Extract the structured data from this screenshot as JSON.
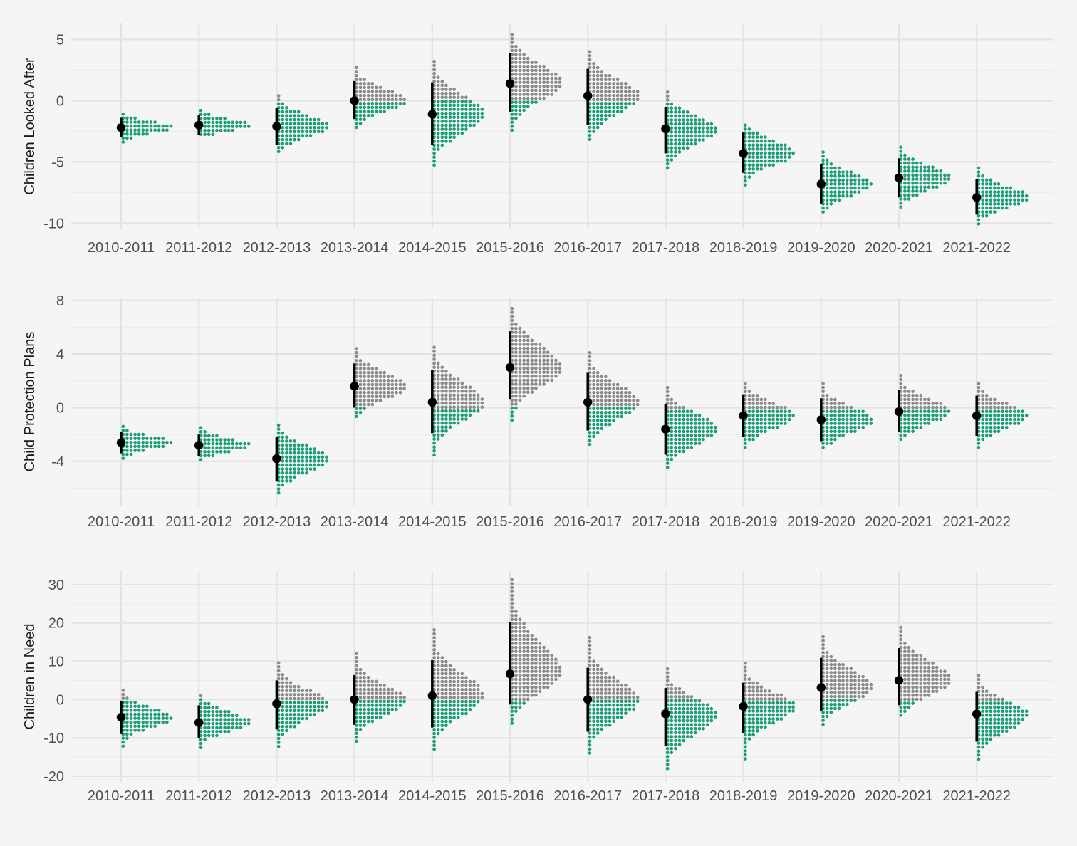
{
  "colors": {
    "background": "#f5f5f5",
    "grid_major": "#e3e3e3",
    "grid_minor": "#ececec",
    "above_zero": "#8a8a8a",
    "below_zero": "#1b9e77",
    "interval": "#000000",
    "text": "#4d4d4d"
  },
  "chart_data": [
    {
      "type": "scatter",
      "subtype": "quantile-dotplot-with-interval",
      "ylabel": "Children Looked After",
      "ylim": [
        -10.5,
        6.3
      ],
      "yticks": [
        "5",
        "0",
        "-5",
        "-10"
      ],
      "ytick_values": [
        5,
        0,
        -5,
        -10
      ],
      "categories": [
        "2010-2011",
        "2011-2012",
        "2012-2013",
        "2013-2014",
        "2014-2015",
        "2015-2016",
        "2016-2017",
        "2017-2018",
        "2018-2019",
        "2019-2020",
        "2020-2021",
        "2021-2022"
      ],
      "series": [
        {
          "name": "",
          "point": [
            -2.2,
            -2.0,
            -2.1,
            0.0,
            -1.1,
            1.4,
            0.4,
            -2.3,
            -4.3,
            -6.8,
            -6.3,
            -7.9
          ],
          "lower": [
            -3.0,
            -2.8,
            -3.6,
            -1.5,
            -3.6,
            -0.9,
            -2.0,
            -4.3,
            -5.9,
            -8.4,
            -7.9,
            -9.3
          ],
          "upper": [
            -1.4,
            -1.2,
            -0.6,
            1.6,
            1.5,
            3.9,
            2.6,
            -0.5,
            -2.6,
            -5.2,
            -4.7,
            -6.4
          ],
          "min": [
            -3.5,
            -3.0,
            -4.4,
            -2.4,
            -5.3,
            -2.5,
            -3.2,
            -5.6,
            -7.2,
            -9.4,
            -8.7,
            -10.1
          ],
          "max": [
            -1.1,
            -0.8,
            0.4,
            2.7,
            3.2,
            5.4,
            4.0,
            0.7,
            -2.0,
            -4.2,
            -3.8,
            -5.5
          ]
        }
      ]
    },
    {
      "type": "scatter",
      "subtype": "quantile-dotplot-with-interval",
      "ylabel": "Child Protection Plans",
      "ylim": [
        -7.3,
        8.2
      ],
      "yticks": [
        "8",
        "4",
        "0",
        "-4"
      ],
      "ytick_values": [
        8,
        4,
        0,
        -4
      ],
      "categories": [
        "2010-2011",
        "2011-2012",
        "2012-2013",
        "2013-2014",
        "2014-2015",
        "2015-2016",
        "2016-2017",
        "2017-2018",
        "2018-2019",
        "2019-2020",
        "2020-2021",
        "2021-2022"
      ],
      "series": [
        {
          "name": "",
          "point": [
            -2.6,
            -2.8,
            -3.8,
            1.6,
            0.4,
            3.0,
            0.4,
            -1.6,
            -0.6,
            -0.9,
            -0.3,
            -0.6
          ],
          "lower": [
            -3.4,
            -3.6,
            -5.5,
            0.0,
            -1.9,
            0.6,
            -1.7,
            -3.5,
            -2.2,
            -2.5,
            -1.8,
            -2.1
          ],
          "upper": [
            -1.8,
            -2.0,
            -2.2,
            3.3,
            2.8,
            5.7,
            2.6,
            0.3,
            1.0,
            0.7,
            1.3,
            0.9
          ],
          "min": [
            -3.8,
            -4.0,
            -6.6,
            -0.9,
            -3.6,
            -1.0,
            -2.9,
            -4.6,
            -3.2,
            -3.1,
            -2.6,
            -3.2
          ],
          "max": [
            -1.4,
            -1.5,
            -1.3,
            4.4,
            4.5,
            7.4,
            4.1,
            1.5,
            1.8,
            1.8,
            2.4,
            1.8
          ]
        }
      ]
    },
    {
      "type": "scatter",
      "subtype": "quantile-dotplot-with-interval",
      "ylabel": "Children in Need",
      "ylim": [
        -21.5,
        33.5
      ],
      "yticks": [
        "30",
        "20",
        "10",
        "0",
        "-10",
        "-20"
      ],
      "ytick_values": [
        30,
        20,
        10,
        0,
        -10,
        -20
      ],
      "categories": [
        "2010-2011",
        "2011-2012",
        "2012-2013",
        "2013-2014",
        "2014-2015",
        "2015-2016",
        "2016-2017",
        "2017-2018",
        "2018-2019",
        "2019-2020",
        "2020-2021",
        "2021-2022"
      ],
      "series": [
        {
          "name": "",
          "point": [
            -4.6,
            -6.0,
            -1.1,
            0.0,
            1.0,
            6.7,
            0.0,
            -3.7,
            -1.8,
            3.1,
            5.0,
            -3.8
          ],
          "lower": [
            -9.0,
            -10.0,
            -7.8,
            -6.6,
            -7.3,
            -1.3,
            -8.4,
            -12.1,
            -8.8,
            -3.1,
            -1.5,
            -11.0
          ],
          "upper": [
            -0.3,
            -1.5,
            5.0,
            6.4,
            10.3,
            20.3,
            8.3,
            3.0,
            4.4,
            10.9,
            13.4,
            2.0
          ],
          "min": [
            -12.2,
            -12.9,
            -13.2,
            -11.7,
            -14.0,
            -6.3,
            -14.4,
            -19.0,
            -15.9,
            -7.4,
            -5.0,
            -16.1
          ],
          "max": [
            2.4,
            1.0,
            9.6,
            12.0,
            18.2,
            31.3,
            16.2,
            8.0,
            9.5,
            16.4,
            18.8,
            6.3
          ]
        }
      ]
    }
  ]
}
